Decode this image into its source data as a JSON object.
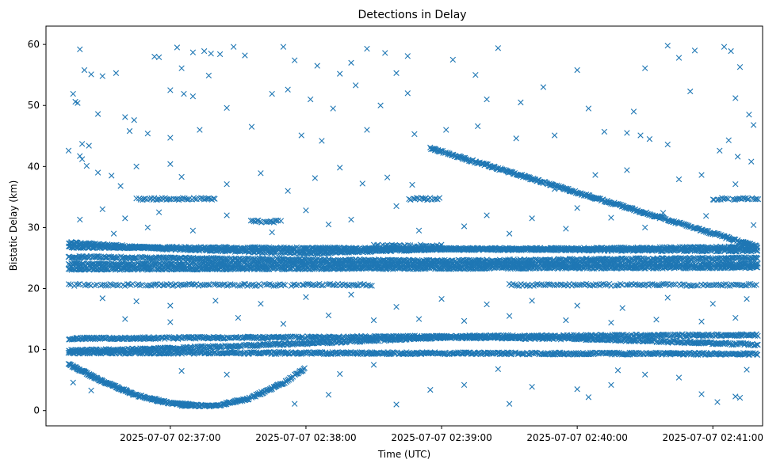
{
  "chart_data": {
    "type": "scatter",
    "title": "Detections in Delay",
    "xlabel": "Time (UTC)",
    "ylabel": "Bistatic Delay (km)",
    "marker": "x",
    "color": "#1f77b4",
    "grid": false,
    "legend": "none",
    "xlim": [
      "2025-07-07 02:36:05",
      "2025-07-07 02:41:22"
    ],
    "ylim": [
      -2.5,
      63
    ],
    "xticks": [
      "2025-07-07 02:37:00",
      "2025-07-07 02:38:00",
      "2025-07-07 02:39:00",
      "2025-07-07 02:40:00",
      "2025-07-07 02:41:00"
    ],
    "yticks": [
      0,
      10,
      20,
      30,
      40,
      50,
      60
    ],
    "time_range": [
      "2025-07-07 02:36:15",
      "2025-07-07 02:41:20"
    ],
    "tracks": [
      {
        "points": [
          [
            "02:36:15",
            7.6
          ],
          [
            "02:36:30",
            4.8
          ],
          [
            "02:36:45",
            2.5
          ],
          [
            "02:37:00",
            1.2
          ],
          [
            "02:37:10",
            0.9
          ]
        ],
        "density": 4
      },
      {
        "points": [
          [
            "02:37:05",
            0.9
          ],
          [
            "02:37:20",
            0.8
          ],
          [
            "02:37:35",
            2.0
          ],
          [
            "02:37:50",
            4.5
          ],
          [
            "02:38:00",
            7.0
          ]
        ],
        "density": 3
      },
      {
        "points": [
          [
            "02:38:55",
            43.0
          ],
          [
            "02:41:20",
            26.8
          ]
        ],
        "density": 3
      },
      {
        "points": [
          [
            "02:36:15",
            11.8
          ],
          [
            "02:41:20",
            12.4
          ]
        ],
        "density": 2.5
      },
      {
        "points": [
          [
            "02:36:15",
            9.5
          ],
          [
            "02:41:20",
            9.3
          ]
        ],
        "density": 2.5
      },
      {
        "points": [
          [
            "02:36:15",
            9.8
          ],
          [
            "02:37:00",
            10.2
          ],
          [
            "02:38:00",
            11.0
          ],
          [
            "02:39:00",
            12.0
          ],
          [
            "02:40:00",
            11.8
          ],
          [
            "02:41:20",
            10.8
          ]
        ],
        "density": 2.5
      },
      {
        "points": [
          [
            "02:36:15",
            27.5
          ],
          [
            "02:37:00",
            26.5
          ],
          [
            "02:38:00",
            25.8
          ],
          [
            "02:39:00",
            26.5
          ],
          [
            "02:40:00",
            26.5
          ],
          [
            "02:41:20",
            26.8
          ]
        ],
        "density": 2.5
      },
      {
        "points": [
          [
            "02:36:15",
            26.8
          ],
          [
            "02:41:20",
            26.2
          ]
        ],
        "density": 2.5
      },
      {
        "points": [
          [
            "02:36:15",
            24.0
          ],
          [
            "02:41:20",
            24.0
          ]
        ],
        "density": 2.5
      },
      {
        "points": [
          [
            "02:36:15",
            23.2
          ],
          [
            "02:41:20",
            23.5
          ]
        ],
        "density": 2.5
      },
      {
        "points": [
          [
            "02:36:15",
            25.2
          ],
          [
            "02:37:30",
            24.8
          ],
          [
            "02:39:00",
            24.5
          ],
          [
            "02:41:20",
            25.0
          ]
        ],
        "density": 2.5
      }
    ],
    "segments": [
      {
        "points": [
          [
            "02:36:15",
            20.6
          ],
          [
            "02:38:30",
            20.6
          ]
        ],
        "density": 1.2
      },
      {
        "points": [
          [
            "02:39:30",
            20.6
          ],
          [
            "02:41:20",
            20.6
          ]
        ],
        "density": 1.2
      },
      {
        "points": [
          [
            "02:36:45",
            34.7
          ],
          [
            "02:37:20",
            34.7
          ]
        ],
        "density": 1.5
      },
      {
        "points": [
          [
            "02:38:45",
            34.7
          ],
          [
            "02:39:00",
            34.7
          ]
        ],
        "density": 1.5
      },
      {
        "points": [
          [
            "02:41:00",
            34.7
          ],
          [
            "02:41:20",
            34.7
          ]
        ],
        "density": 1.5
      },
      {
        "points": [
          [
            "02:37:35",
            31.0
          ],
          [
            "02:37:50",
            31.0
          ]
        ],
        "density": 1.5
      },
      {
        "points": [
          [
            "02:38:30",
            27.0
          ],
          [
            "02:39:00",
            27.0
          ]
        ],
        "density": 1.5
      }
    ],
    "noise": [
      [
        "02:36:20",
        59.2
      ],
      [
        "02:36:22",
        55.8
      ],
      [
        "02:36:25",
        55.1
      ],
      [
        "02:36:17",
        51.9
      ],
      [
        "02:36:18",
        50.6
      ],
      [
        "02:36:19",
        50.4
      ],
      [
        "02:36:28",
        48.6
      ],
      [
        "02:36:40",
        48.1
      ],
      [
        "02:36:44",
        47.6
      ],
      [
        "02:36:42",
        45.8
      ],
      [
        "02:36:21",
        43.7
      ],
      [
        "02:36:24",
        43.4
      ],
      [
        "02:36:20",
        41.7
      ],
      [
        "02:36:21",
        41.2
      ],
      [
        "02:36:23",
        40.1
      ],
      [
        "02:36:15",
        42.6
      ],
      [
        "02:36:36",
        55.3
      ],
      [
        "02:36:30",
        54.8
      ],
      [
        "02:36:53",
        58.0
      ],
      [
        "02:36:55",
        57.9
      ],
      [
        "02:37:03",
        59.5
      ],
      [
        "02:37:05",
        56.1
      ],
      [
        "02:37:10",
        58.7
      ],
      [
        "02:37:15",
        58.9
      ],
      [
        "02:37:18",
        58.5
      ],
      [
        "02:37:22",
        58.4
      ],
      [
        "02:37:28",
        59.6
      ],
      [
        "02:37:33",
        58.2
      ],
      [
        "02:37:50",
        59.6
      ],
      [
        "02:37:55",
        57.4
      ],
      [
        "02:38:05",
        56.5
      ],
      [
        "02:38:15",
        55.2
      ],
      [
        "02:38:20",
        57.0
      ],
      [
        "02:38:27",
        59.3
      ],
      [
        "02:38:35",
        58.6
      ],
      [
        "02:38:40",
        55.3
      ],
      [
        "02:38:45",
        58.1
      ],
      [
        "02:39:05",
        57.5
      ],
      [
        "02:39:15",
        55.0
      ],
      [
        "02:39:25",
        59.4
      ],
      [
        "02:40:00",
        55.8
      ],
      [
        "02:40:30",
        56.1
      ],
      [
        "02:40:40",
        59.8
      ],
      [
        "02:40:45",
        57.8
      ],
      [
        "02:40:52",
        59.0
      ],
      [
        "02:41:05",
        59.6
      ],
      [
        "02:41:08",
        58.9
      ],
      [
        "02:41:12",
        56.3
      ],
      [
        "02:37:00",
        52.5
      ],
      [
        "02:37:06",
        51.9
      ],
      [
        "02:37:10",
        51.5
      ],
      [
        "02:37:17",
        54.9
      ],
      [
        "02:37:25",
        49.6
      ],
      [
        "02:37:45",
        51.9
      ],
      [
        "02:37:52",
        52.6
      ],
      [
        "02:38:02",
        51.0
      ],
      [
        "02:38:12",
        49.5
      ],
      [
        "02:38:22",
        53.3
      ],
      [
        "02:38:33",
        50.0
      ],
      [
        "02:38:45",
        52.0
      ],
      [
        "02:39:20",
        51.0
      ],
      [
        "02:39:35",
        50.5
      ],
      [
        "02:39:45",
        53.0
      ],
      [
        "02:40:05",
        49.5
      ],
      [
        "02:40:25",
        49.0
      ],
      [
        "02:40:50",
        52.3
      ],
      [
        "02:41:10",
        51.2
      ],
      [
        "02:41:16",
        48.5
      ],
      [
        "02:41:18",
        46.8
      ],
      [
        "02:36:50",
        45.4
      ],
      [
        "02:37:00",
        44.7
      ],
      [
        "02:37:13",
        46.0
      ],
      [
        "02:37:36",
        46.5
      ],
      [
        "02:37:58",
        45.1
      ],
      [
        "02:38:07",
        44.2
      ],
      [
        "02:38:27",
        46.0
      ],
      [
        "02:38:48",
        45.3
      ],
      [
        "02:39:02",
        46.0
      ],
      [
        "02:39:16",
        46.6
      ],
      [
        "02:39:33",
        44.6
      ],
      [
        "02:39:50",
        45.1
      ],
      [
        "02:40:12",
        45.7
      ],
      [
        "02:40:22",
        45.5
      ],
      [
        "02:40:28",
        45.1
      ],
      [
        "02:40:32",
        44.5
      ],
      [
        "02:40:40",
        43.6
      ],
      [
        "02:41:03",
        42.6
      ],
      [
        "02:41:11",
        41.6
      ],
      [
        "02:41:17",
        40.8
      ],
      [
        "02:41:07",
        44.3
      ],
      [
        "02:36:28",
        39.0
      ],
      [
        "02:36:34",
        38.5
      ],
      [
        "02:36:38",
        36.8
      ],
      [
        "02:36:45",
        40.0
      ],
      [
        "02:37:00",
        40.4
      ],
      [
        "02:37:05",
        38.3
      ],
      [
        "02:37:25",
        37.1
      ],
      [
        "02:37:40",
        38.9
      ],
      [
        "02:37:52",
        36.0
      ],
      [
        "02:38:04",
        38.1
      ],
      [
        "02:38:15",
        39.8
      ],
      [
        "02:38:25",
        37.2
      ],
      [
        "02:38:36",
        38.2
      ],
      [
        "02:38:47",
        37.0
      ],
      [
        "02:39:35",
        38.4
      ],
      [
        "02:39:50",
        36.3
      ],
      [
        "02:40:08",
        38.6
      ],
      [
        "02:40:22",
        39.4
      ],
      [
        "02:40:45",
        37.9
      ],
      [
        "02:40:55",
        38.6
      ],
      [
        "02:41:10",
        37.1
      ],
      [
        "02:36:30",
        33.0
      ],
      [
        "02:36:40",
        31.5
      ],
      [
        "02:36:55",
        32.5
      ],
      [
        "02:37:25",
        32.0
      ],
      [
        "02:38:00",
        32.8
      ],
      [
        "02:38:20",
        31.3
      ],
      [
        "02:38:40",
        33.5
      ],
      [
        "02:39:20",
        32.0
      ],
      [
        "02:39:40",
        31.5
      ],
      [
        "02:40:00",
        33.2
      ],
      [
        "02:40:15",
        31.6
      ],
      [
        "02:40:38",
        32.4
      ],
      [
        "02:40:57",
        31.9
      ],
      [
        "02:41:18",
        30.4
      ],
      [
        "02:36:20",
        31.3
      ],
      [
        "02:36:35",
        29.0
      ],
      [
        "02:36:50",
        30.0
      ],
      [
        "02:37:10",
        29.5
      ],
      [
        "02:37:45",
        29.2
      ],
      [
        "02:38:10",
        30.5
      ],
      [
        "02:38:50",
        29.5
      ],
      [
        "02:39:10",
        30.2
      ],
      [
        "02:39:30",
        29.0
      ],
      [
        "02:39:55",
        29.8
      ],
      [
        "02:40:30",
        30.0
      ],
      [
        "02:36:30",
        18.4
      ],
      [
        "02:36:45",
        17.9
      ],
      [
        "02:37:00",
        17.2
      ],
      [
        "02:37:20",
        18.0
      ],
      [
        "02:37:40",
        17.5
      ],
      [
        "02:38:00",
        18.6
      ],
      [
        "02:38:20",
        19.0
      ],
      [
        "02:38:40",
        17.0
      ],
      [
        "02:39:00",
        18.3
      ],
      [
        "02:39:20",
        17.4
      ],
      [
        "02:39:40",
        18.0
      ],
      [
        "02:40:00",
        17.2
      ],
      [
        "02:40:20",
        16.8
      ],
      [
        "02:40:40",
        18.5
      ],
      [
        "02:41:00",
        17.5
      ],
      [
        "02:41:15",
        18.3
      ],
      [
        "02:36:40",
        15.0
      ],
      [
        "02:37:00",
        14.5
      ],
      [
        "02:37:30",
        15.2
      ],
      [
        "02:37:50",
        14.2
      ],
      [
        "02:38:10",
        15.6
      ],
      [
        "02:38:30",
        14.8
      ],
      [
        "02:38:50",
        15.0
      ],
      [
        "02:39:10",
        14.7
      ],
      [
        "02:39:30",
        15.5
      ],
      [
        "02:39:55",
        14.8
      ],
      [
        "02:40:15",
        14.4
      ],
      [
        "02:40:35",
        14.9
      ],
      [
        "02:40:55",
        14.6
      ],
      [
        "02:41:10",
        15.2
      ],
      [
        "02:37:05",
        6.5
      ],
      [
        "02:37:25",
        5.9
      ],
      [
        "02:37:45",
        3.5
      ],
      [
        "02:38:15",
        6.0
      ],
      [
        "02:38:30",
        7.5
      ],
      [
        "02:38:40",
        1.0
      ],
      [
        "02:38:55",
        3.4
      ],
      [
        "02:39:10",
        4.2
      ],
      [
        "02:39:25",
        6.8
      ],
      [
        "02:39:40",
        3.9
      ],
      [
        "02:40:00",
        3.5
      ],
      [
        "02:40:05",
        2.2
      ],
      [
        "02:40:15",
        4.2
      ],
      [
        "02:40:30",
        5.9
      ],
      [
        "02:40:45",
        5.4
      ],
      [
        "02:40:55",
        2.7
      ],
      [
        "02:41:02",
        1.4
      ],
      [
        "02:41:10",
        2.3
      ],
      [
        "02:41:12",
        2.1
      ],
      [
        "02:41:15",
        6.7
      ],
      [
        "02:36:17",
        4.6
      ],
      [
        "02:36:25",
        3.3
      ],
      [
        "02:37:55",
        1.1
      ],
      [
        "02:38:10",
        2.6
      ],
      [
        "02:39:30",
        1.1
      ],
      [
        "02:40:18",
        6.6
      ]
    ]
  }
}
